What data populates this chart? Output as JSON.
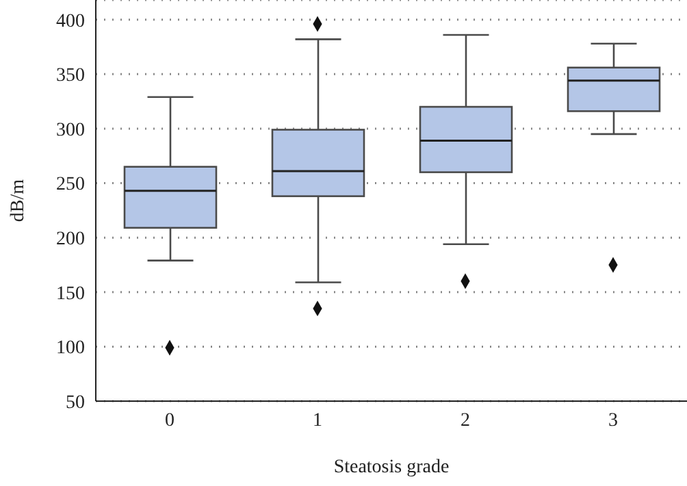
{
  "chart_data": {
    "type": "box",
    "xlabel": "Steatosis grade",
    "ylabel": "dB/m",
    "categories": [
      "0",
      "1",
      "2",
      "3"
    ],
    "boxes": [
      {
        "low": 179,
        "q1": 209,
        "median": 243,
        "q3": 265,
        "high": 329,
        "outliers": [
          99
        ]
      },
      {
        "low": 159,
        "q1": 238,
        "median": 261,
        "q3": 299,
        "high": 382,
        "outliers": [
          396,
          135
        ]
      },
      {
        "low": 194,
        "q1": 260,
        "median": 289,
        "q3": 320,
        "high": 386,
        "outliers": [
          160
        ]
      },
      {
        "low": 295,
        "q1": 316,
        "median": 344,
        "q3": 356,
        "high": 378,
        "outliers": [
          175
        ]
      }
    ],
    "color": "#b4c6e7",
    "ylim": [
      50,
      418
    ],
    "yticks": [
      50,
      100,
      150,
      200,
      250,
      300,
      350,
      400
    ],
    "grid": "y",
    "marker": "diamond"
  }
}
